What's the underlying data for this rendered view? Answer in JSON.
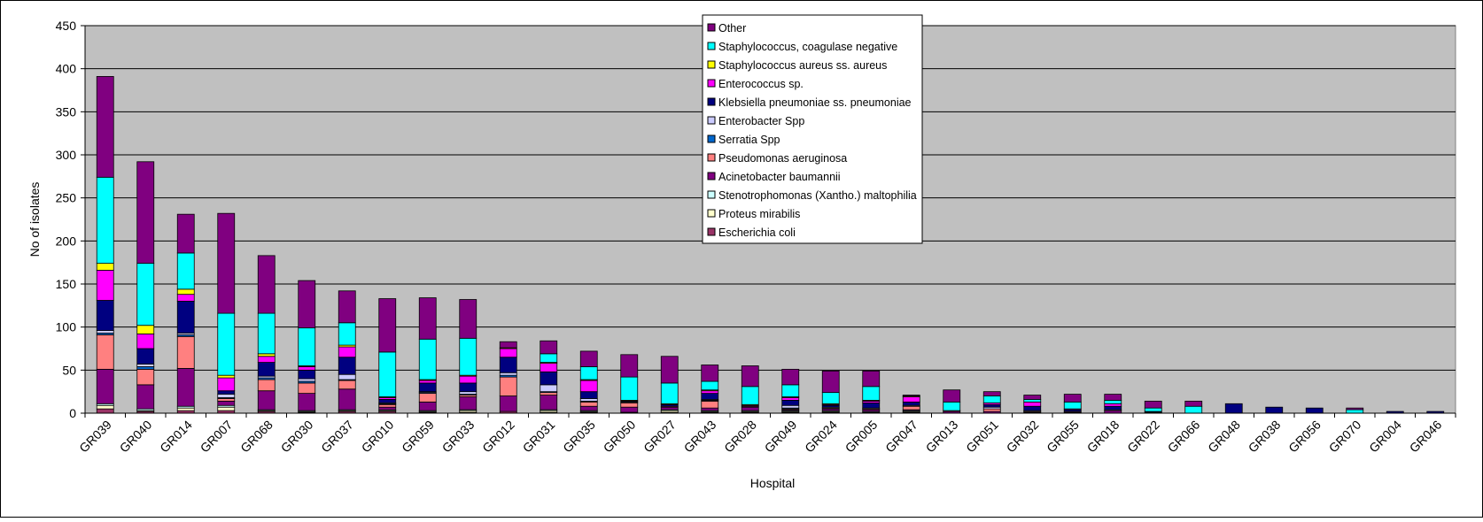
{
  "chart_data": {
    "type": "bar",
    "stacked": true,
    "title": "",
    "xlabel": "Hospital",
    "ylabel": "No of isolates",
    "ylim": [
      0,
      450
    ],
    "yticks": [
      0,
      50,
      100,
      150,
      200,
      250,
      300,
      350,
      400,
      450
    ],
    "grid": true,
    "legend_position": "top-center",
    "plot_background": "#C0C0C0",
    "categories": [
      "GR039",
      "GR040",
      "GR014",
      "GR007",
      "GR068",
      "GR030",
      "GR037",
      "GR010",
      "GR059",
      "GR033",
      "GR012",
      "GR031",
      "GR035",
      "GR050",
      "GR027",
      "GR043",
      "GR028",
      "GR049",
      "GR024",
      "GR005",
      "GR047",
      "GR013",
      "GR051",
      "GR032",
      "GR055",
      "GR018",
      "GR022",
      "GR066",
      "GR048",
      "GR038",
      "GR056",
      "GR070",
      "GR004",
      "GR046"
    ],
    "series": [
      {
        "name": "Escherichia coli",
        "color": "#993366",
        "values": [
          5,
          2,
          3,
          3,
          2,
          1,
          2,
          2,
          1,
          1,
          2,
          1,
          1,
          1,
          1,
          1,
          1,
          1,
          1,
          1,
          1,
          0,
          0,
          0,
          0,
          0,
          0,
          0,
          0,
          0,
          0,
          0,
          0,
          0
        ]
      },
      {
        "name": "Proteus mirabilis",
        "color": "#FFFFCC",
        "values": [
          4,
          1,
          3,
          4,
          1,
          1,
          1,
          1,
          1,
          2,
          0,
          2,
          1,
          0,
          2,
          1,
          1,
          1,
          1,
          0,
          1,
          0,
          0,
          0,
          0,
          0,
          0,
          0,
          0,
          0,
          0,
          0,
          0,
          0
        ]
      },
      {
        "name": "Stenotrophomonas (Xantho.) maltophilia",
        "color": "#CCFFFF",
        "values": [
          2,
          2,
          2,
          2,
          1,
          1,
          1,
          1,
          1,
          1,
          0,
          1,
          1,
          0,
          1,
          1,
          1,
          1,
          1,
          1,
          1,
          0,
          0,
          0,
          0,
          0,
          0,
          0,
          0,
          0,
          0,
          0,
          0,
          0
        ]
      },
      {
        "name": "Acinetobacter baumannii",
        "color": "#800080",
        "values": [
          40,
          28,
          44,
          5,
          22,
          20,
          24,
          3,
          10,
          15,
          18,
          17,
          5,
          6,
          3,
          3,
          4,
          1,
          2,
          2,
          1,
          2,
          2,
          1,
          1,
          3,
          1,
          0,
          0,
          0,
          0,
          0,
          0,
          0
        ]
      },
      {
        "name": "Pseudomonas aeruginosa",
        "color": "#FF8080",
        "values": [
          40,
          18,
          37,
          3,
          13,
          12,
          10,
          3,
          10,
          2,
          22,
          3,
          5,
          5,
          1,
          8,
          1,
          1,
          1,
          1,
          4,
          1,
          3,
          1,
          1,
          0,
          0,
          0,
          0,
          0,
          0,
          0,
          0,
          0
        ]
      },
      {
        "name": "Serratia Spp",
        "color": "#0066CC",
        "values": [
          2,
          3,
          2,
          1,
          2,
          2,
          1,
          1,
          1,
          1,
          2,
          1,
          1,
          0,
          0,
          1,
          0,
          1,
          0,
          0,
          0,
          0,
          0,
          0,
          0,
          0,
          0,
          0,
          0,
          0,
          0,
          0,
          0,
          0
        ]
      },
      {
        "name": "Enterobacter Spp",
        "color": "#CCCCFF",
        "values": [
          3,
          3,
          2,
          4,
          2,
          3,
          6,
          1,
          1,
          3,
          3,
          8,
          3,
          1,
          0,
          1,
          0,
          3,
          1,
          1,
          1,
          0,
          2,
          1,
          0,
          1,
          0,
          0,
          0,
          0,
          0,
          0,
          0,
          0
        ]
      },
      {
        "name": "Klebsiella pneumoniae ss. pneumoniae",
        "color": "#000080",
        "values": [
          35,
          18,
          37,
          4,
          16,
          10,
          20,
          4,
          10,
          10,
          18,
          15,
          8,
          1,
          2,
          7,
          0,
          6,
          2,
          6,
          4,
          0,
          3,
          5,
          2,
          4,
          1,
          0,
          11,
          7,
          6,
          0,
          2,
          2
        ]
      },
      {
        "name": "Enterococcus sp.",
        "color": "#FF00FF",
        "values": [
          35,
          17,
          8,
          15,
          7,
          4,
          12,
          2,
          3,
          8,
          10,
          10,
          13,
          0,
          0,
          3,
          1,
          3,
          1,
          2,
          6,
          0,
          2,
          5,
          1,
          3,
          0,
          0,
          0,
          0,
          0,
          0,
          0,
          0
        ]
      },
      {
        "name": "Staphylococcus aureus ss. aureus",
        "color": "#FFFF00",
        "values": [
          8,
          10,
          6,
          3,
          3,
          1,
          2,
          1,
          1,
          1,
          1,
          1,
          1,
          1,
          1,
          1,
          1,
          1,
          1,
          1,
          1,
          0,
          0,
          0,
          0,
          0,
          0,
          0,
          0,
          0,
          0,
          0,
          0,
          0
        ]
      },
      {
        "name": "Staphylococcus, coagulase negative",
        "color": "#00FFFF",
        "values": [
          100,
          72,
          42,
          72,
          47,
          44,
          26,
          52,
          47,
          43,
          0,
          10,
          15,
          27,
          24,
          10,
          21,
          14,
          13,
          16,
          0,
          10,
          8,
          3,
          8,
          4,
          4,
          8,
          0,
          0,
          0,
          4,
          0,
          0
        ]
      },
      {
        "name": "Other",
        "color": "#800080",
        "values": [
          117,
          118,
          45,
          116,
          67,
          55,
          37,
          62,
          48,
          45,
          7,
          15,
          18,
          26,
          31,
          19,
          24,
          18,
          25,
          18,
          1,
          14,
          5,
          5,
          9,
          7,
          8,
          6,
          0,
          0,
          0,
          2,
          0,
          0
        ]
      }
    ]
  }
}
